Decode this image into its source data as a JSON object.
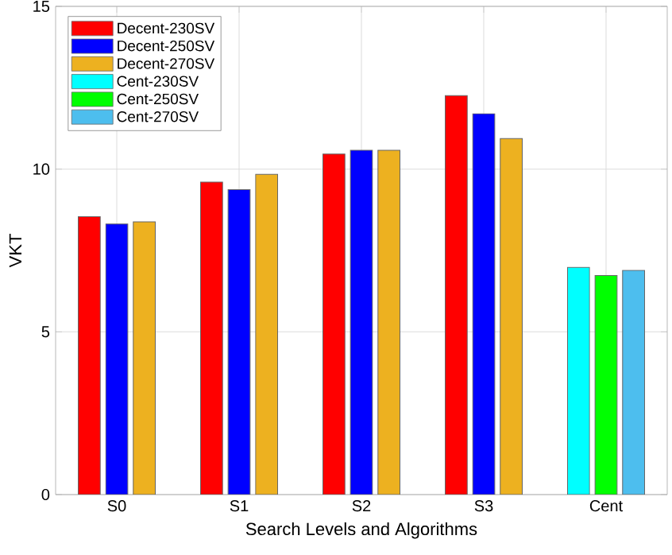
{
  "chart_data": {
    "type": "bar",
    "xlabel": "Search Levels and Algorithms",
    "ylabel": "VKT",
    "categories": [
      "S0",
      "S1",
      "S2",
      "S3",
      "Cent"
    ],
    "series": [
      {
        "name": "Decent-230SV",
        "color": "#ff0000",
        "values": [
          8.54,
          9.6,
          10.46,
          12.26,
          null
        ]
      },
      {
        "name": "Decent-250SV",
        "color": "#0000ff",
        "values": [
          8.31,
          9.37,
          10.58,
          11.7,
          null
        ]
      },
      {
        "name": "Decent-270SV",
        "color": "#edb120",
        "values": [
          8.38,
          9.84,
          10.58,
          10.94,
          null
        ]
      },
      {
        "name": "Cent-230SV",
        "color": "#00ffff",
        "values": [
          null,
          null,
          null,
          null,
          6.98
        ]
      },
      {
        "name": "Cent-250SV",
        "color": "#00ff00",
        "values": [
          null,
          null,
          null,
          null,
          6.73
        ]
      },
      {
        "name": "Cent-270SV",
        "color": "#4dbeee",
        "values": [
          null,
          null,
          null,
          null,
          6.89
        ]
      }
    ],
    "ylim": [
      0,
      15
    ],
    "yticks": [
      0,
      5,
      10,
      15
    ],
    "grid": true,
    "legend": "top left"
  }
}
